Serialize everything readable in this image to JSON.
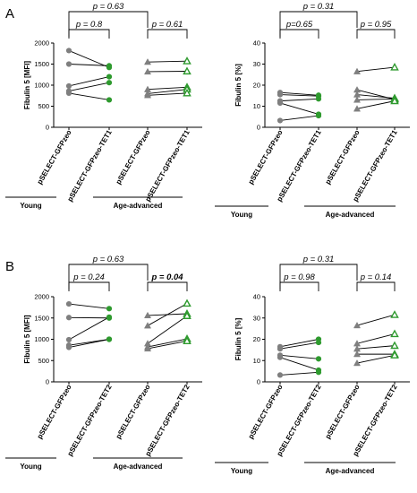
{
  "colors": {
    "gray": "#7f7f7f",
    "green": "#2e9a2e",
    "line": "#000000"
  },
  "panels": [
    {
      "letter": "A"
    },
    {
      "letter": "B"
    }
  ],
  "groups": {
    "young": "Young",
    "aged": "Age-advanced"
  },
  "chart_data": [
    {
      "type": "scatter",
      "panel": "A",
      "ylabel": "Fibulin 5 [MFI]",
      "ylim": [
        0,
        2000
      ],
      "yticks": [
        "0",
        "500",
        "1000",
        "1500",
        "2000"
      ],
      "categories": [
        "pSELECT-GFPzeo",
        "pSELECT-GFPzeo-TET1",
        "pSELECT-GFPzeo",
        "pSELECT-GFPzeo-TET1"
      ],
      "pairs": [
        {
          "group": "young",
          "from": [
            1820,
            1500,
            980,
            860,
            810
          ],
          "to": [
            1420,
            1460,
            1200,
            1060,
            650
          ]
        },
        {
          "group": "aged",
          "from": [
            1550,
            1320,
            900,
            800,
            760
          ],
          "to": [
            1570,
            1330,
            950,
            900,
            810
          ]
        }
      ],
      "comparisons": [
        {
          "label": "p = 0.63",
          "bold": false,
          "a": 0,
          "b": 2
        },
        {
          "label": "p = 0.8",
          "bold": false,
          "a": 0,
          "b": 1
        },
        {
          "label": "p = 0.61",
          "bold": false,
          "a": 2,
          "b": 3
        }
      ]
    },
    {
      "type": "scatter",
      "panel": "A",
      "ylabel": "Fibulin 5 [%]",
      "ylim": [
        0,
        40
      ],
      "yticks": [
        "0",
        "10",
        "20",
        "30",
        "40"
      ],
      "categories": [
        "pSELECT-GFPzeo",
        "pSELECT-GFPzeo-TET1",
        "pSELECT-GFPzeo",
        "pSELECT-GFPzeo-TET1"
      ],
      "pairs": [
        {
          "group": "young",
          "from": [
            16.5,
            15.5,
            12.5,
            11.5,
            3.2
          ],
          "to": [
            15.2,
            14.8,
            13.5,
            6.2,
            5.5
          ]
        },
        {
          "group": "aged",
          "from": [
            26.5,
            17.8,
            15.5,
            13.0,
            8.8
          ],
          "to": [
            28.5,
            13.2,
            13.8,
            13.5,
            12.5
          ]
        }
      ],
      "comparisons": [
        {
          "label": "p = 0.31",
          "bold": false,
          "a": 0,
          "b": 2
        },
        {
          "label": "p=0.65",
          "bold": false,
          "a": 0,
          "b": 1
        },
        {
          "label": "p = 0.95",
          "bold": false,
          "a": 2,
          "b": 3
        }
      ]
    },
    {
      "type": "scatter",
      "panel": "B",
      "ylabel": "Fibulin 5 [MFI]",
      "ylim": [
        0,
        2000
      ],
      "yticks": [
        "0",
        "500",
        "1000",
        "1500",
        "2000"
      ],
      "categories": [
        "pSELECT-GFPzeo",
        "pSELECT-GFPzeo-TET2",
        "pSELECT-GFPzeo",
        "pSELECT-GFPzeo-TET2"
      ],
      "pairs": [
        {
          "group": "young",
          "from": [
            1830,
            1510,
            990,
            860,
            810
          ],
          "to": [
            1720,
            1500,
            1520,
            1000,
            1000
          ]
        },
        {
          "group": "aged",
          "from": [
            1560,
            1320,
            900,
            820,
            780
          ],
          "to": [
            1600,
            1840,
            1550,
            1010,
            960
          ]
        }
      ],
      "comparisons": [
        {
          "label": "p = 0.63",
          "bold": false,
          "a": 0,
          "b": 2
        },
        {
          "label": "p = 0.24",
          "bold": false,
          "a": 0,
          "b": 1
        },
        {
          "label": "p = 0.04",
          "bold": true,
          "a": 2,
          "b": 3
        }
      ]
    },
    {
      "type": "scatter",
      "panel": "B",
      "ylabel": "Fibulin 5 [%]",
      "ylim": [
        0,
        40
      ],
      "yticks": [
        "0",
        "10",
        "20",
        "30",
        "40"
      ],
      "categories": [
        "pSELECT-GFPzeo",
        "pSELECT-GFPzeo-TET2",
        "pSELECT-GFPzeo",
        "pSELECT-GFPzeo-TET2"
      ],
      "pairs": [
        {
          "group": "young",
          "from": [
            16.5,
            15.5,
            12.5,
            11.5,
            3.2
          ],
          "to": [
            20.0,
            18.5,
            10.8,
            5.5,
            4.5
          ]
        },
        {
          "group": "aged",
          "from": [
            26.5,
            18.0,
            15.5,
            13.0,
            8.8
          ],
          "to": [
            31.5,
            22.5,
            17.0,
            13.0,
            12.5
          ]
        }
      ],
      "comparisons": [
        {
          "label": "p = 0.31",
          "bold": false,
          "a": 0,
          "b": 2
        },
        {
          "label": "p = 0.98",
          "bold": false,
          "a": 0,
          "b": 1
        },
        {
          "label": "p = 0.14",
          "bold": false,
          "a": 2,
          "b": 3
        }
      ]
    }
  ]
}
